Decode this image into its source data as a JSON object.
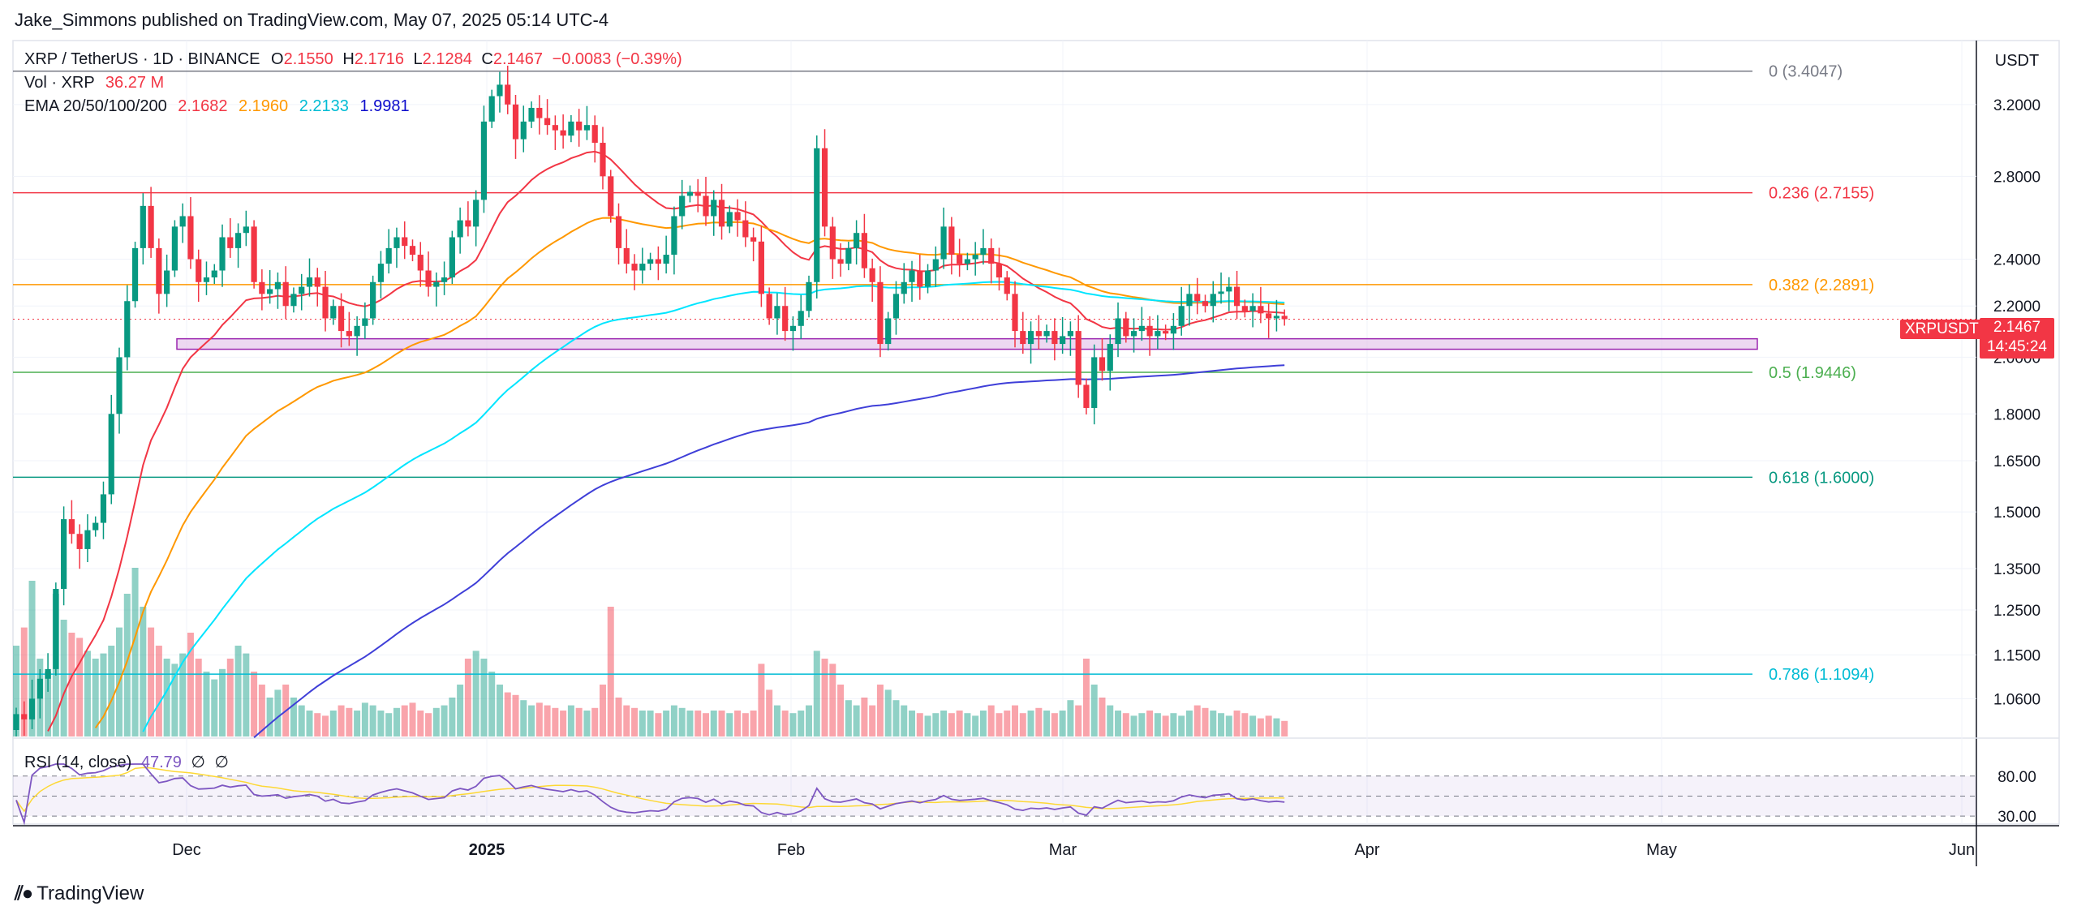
{
  "header": {
    "publisher": "Jake_Simmons published on TradingView.com, May 07, 2025 05:14 UTC-4"
  },
  "legend": {
    "symbol": "XRP / TetherUS · 1D · BINANCE",
    "o_label": "O",
    "o_value": "2.1550",
    "h_label": "H",
    "h_value": "2.1716",
    "l_label": "L",
    "l_value": "2.1284",
    "c_label": "C",
    "c_value": "2.1467",
    "change": "−0.0083 (−0.39%)",
    "vol_label": "Vol · XRP",
    "vol_value": "36.27 M",
    "ema_label": "EMA 20/50/100/200",
    "ema20": "2.1682",
    "ema50": "2.1960",
    "ema100": "2.2133",
    "ema200": "1.9981"
  },
  "currency": "USDT",
  "symbol_badge": "XRPUSDT",
  "price_badge": {
    "price": "2.1467",
    "countdown": "14:45:24"
  },
  "rsi": {
    "label": "RSI (14, close)",
    "value": "47.79",
    "upper": "80.00",
    "lower": "30.00",
    "empty1": "∅",
    "empty2": "∅"
  },
  "brand": "TradingView",
  "colors": {
    "up": "#089981",
    "down": "#f23645",
    "ema20": "#f23645",
    "ema50": "#ff9800",
    "ema100": "#00e5ff",
    "ema200": "#3f3fd8",
    "rsi": "#7e57c2",
    "rsi_ma": "#fdd835"
  },
  "chart_data": {
    "type": "candlestick",
    "y_axis": {
      "scale": "log",
      "ticks": [
        "3.2000",
        "2.8000",
        "2.4000",
        "2.2000",
        "2.0000",
        "1.8000",
        "1.6500",
        "1.5000",
        "1.3500",
        "1.2500",
        "1.1500",
        "1.0600"
      ],
      "range": [
        1.0,
        3.55
      ]
    },
    "x_axis": {
      "ticks": [
        "Dec",
        "2025",
        "Feb",
        "Mar",
        "Apr",
        "May",
        "Jun"
      ]
    },
    "fib_levels": [
      {
        "label": "0 (3.4047)",
        "value": 3.4047,
        "color": "#787b86"
      },
      {
        "label": "0.236 (2.7155)",
        "value": 2.7155,
        "color": "#f23645"
      },
      {
        "label": "0.382 (2.2891)",
        "value": 2.2891,
        "color": "#ff9800"
      },
      {
        "label": "0.5 (1.9446)",
        "value": 1.9446,
        "color": "#4caf50"
      },
      {
        "label": "0.618 (1.6000)",
        "value": 1.6,
        "color": "#089981"
      },
      {
        "label": "0.786 (1.1094)",
        "value": 1.1094,
        "color": "#00bcd4"
      }
    ],
    "support_zone": [
      2.03,
      2.07
    ],
    "last_close": 2.1467,
    "closes": [
      1.03,
      1.02,
      1.06,
      1.1,
      1.12,
      1.3,
      1.48,
      1.44,
      1.4,
      1.45,
      1.47,
      1.55,
      1.8,
      2.0,
      2.22,
      2.45,
      2.65,
      2.45,
      2.25,
      2.35,
      2.55,
      2.6,
      2.4,
      2.3,
      2.32,
      2.35,
      2.5,
      2.45,
      2.52,
      2.55,
      2.3,
      2.25,
      2.27,
      2.3,
      2.2,
      2.25,
      2.28,
      2.32,
      2.28,
      2.15,
      2.2,
      2.1,
      2.08,
      2.12,
      2.15,
      2.3,
      2.38,
      2.45,
      2.5,
      2.46,
      2.42,
      2.35,
      2.28,
      2.3,
      2.32,
      2.5,
      2.58,
      2.55,
      2.68,
      3.1,
      3.25,
      3.32,
      3.2,
      3.0,
      3.1,
      3.18,
      3.12,
      3.08,
      3.05,
      3.02,
      3.1,
      3.05,
      3.08,
      2.98,
      2.8,
      2.6,
      2.45,
      2.38,
      2.35,
      2.38,
      2.4,
      2.38,
      2.42,
      2.6,
      2.7,
      2.72,
      2.7,
      2.6,
      2.68,
      2.55,
      2.62,
      2.58,
      2.5,
      2.48,
      2.25,
      2.15,
      2.2,
      2.1,
      2.12,
      2.18,
      2.3,
      2.95,
      2.55,
      2.4,
      2.38,
      2.45,
      2.52,
      2.36,
      2.3,
      2.05,
      2.15,
      2.25,
      2.3,
      2.35,
      2.28,
      2.35,
      2.4,
      2.55,
      2.42,
      2.38,
      2.4,
      2.42,
      2.45,
      2.38,
      2.32,
      2.25,
      2.1,
      2.05,
      2.1,
      2.08,
      2.1,
      2.05,
      2.08,
      2.1,
      1.9,
      1.82,
      2.0,
      1.95,
      2.05,
      2.15,
      2.08,
      2.1,
      2.12,
      2.08,
      2.1,
      2.09,
      2.12,
      2.2,
      2.25,
      2.22,
      2.2,
      2.25,
      2.26,
      2.28,
      2.2,
      2.18,
      2.2,
      2.17,
      2.15,
      2.16,
      2.1467
    ],
    "volume": [
      0.35,
      0.42,
      0.6,
      0.3,
      0.25,
      0.55,
      0.45,
      0.4,
      0.38,
      0.33,
      0.3,
      0.32,
      0.35,
      0.42,
      0.55,
      0.65,
      0.5,
      0.42,
      0.35,
      0.3,
      0.28,
      0.32,
      0.4,
      0.3,
      0.25,
      0.22,
      0.26,
      0.3,
      0.35,
      0.32,
      0.25,
      0.2,
      0.15,
      0.18,
      0.2,
      0.15,
      0.12,
      0.1,
      0.09,
      0.08,
      0.1,
      0.12,
      0.11,
      0.1,
      0.13,
      0.12,
      0.1,
      0.09,
      0.11,
      0.12,
      0.13,
      0.1,
      0.09,
      0.11,
      0.12,
      0.15,
      0.2,
      0.3,
      0.33,
      0.3,
      0.25,
      0.2,
      0.17,
      0.16,
      0.14,
      0.12,
      0.13,
      0.12,
      0.11,
      0.1,
      0.12,
      0.11,
      0.1,
      0.11,
      0.2,
      0.5,
      0.15,
      0.12,
      0.11,
      0.1,
      0.1,
      0.09,
      0.1,
      0.12,
      0.11,
      0.1,
      0.1,
      0.09,
      0.1,
      0.1,
      0.09,
      0.1,
      0.09,
      0.1,
      0.28,
      0.18,
      0.12,
      0.1,
      0.09,
      0.1,
      0.12,
      0.33,
      0.3,
      0.28,
      0.2,
      0.14,
      0.12,
      0.15,
      0.12,
      0.2,
      0.18,
      0.14,
      0.12,
      0.1,
      0.09,
      0.08,
      0.09,
      0.1,
      0.09,
      0.1,
      0.09,
      0.08,
      0.1,
      0.12,
      0.09,
      0.1,
      0.12,
      0.09,
      0.1,
      0.11,
      0.1,
      0.09,
      0.1,
      0.14,
      0.12,
      0.3,
      0.2,
      0.15,
      0.12,
      0.1,
      0.09,
      0.08,
      0.09,
      0.1,
      0.09,
      0.08,
      0.09,
      0.08,
      0.1,
      0.12,
      0.11,
      0.1,
      0.09,
      0.08,
      0.1,
      0.09,
      0.08,
      0.07,
      0.08,
      0.07,
      0.06
    ]
  }
}
